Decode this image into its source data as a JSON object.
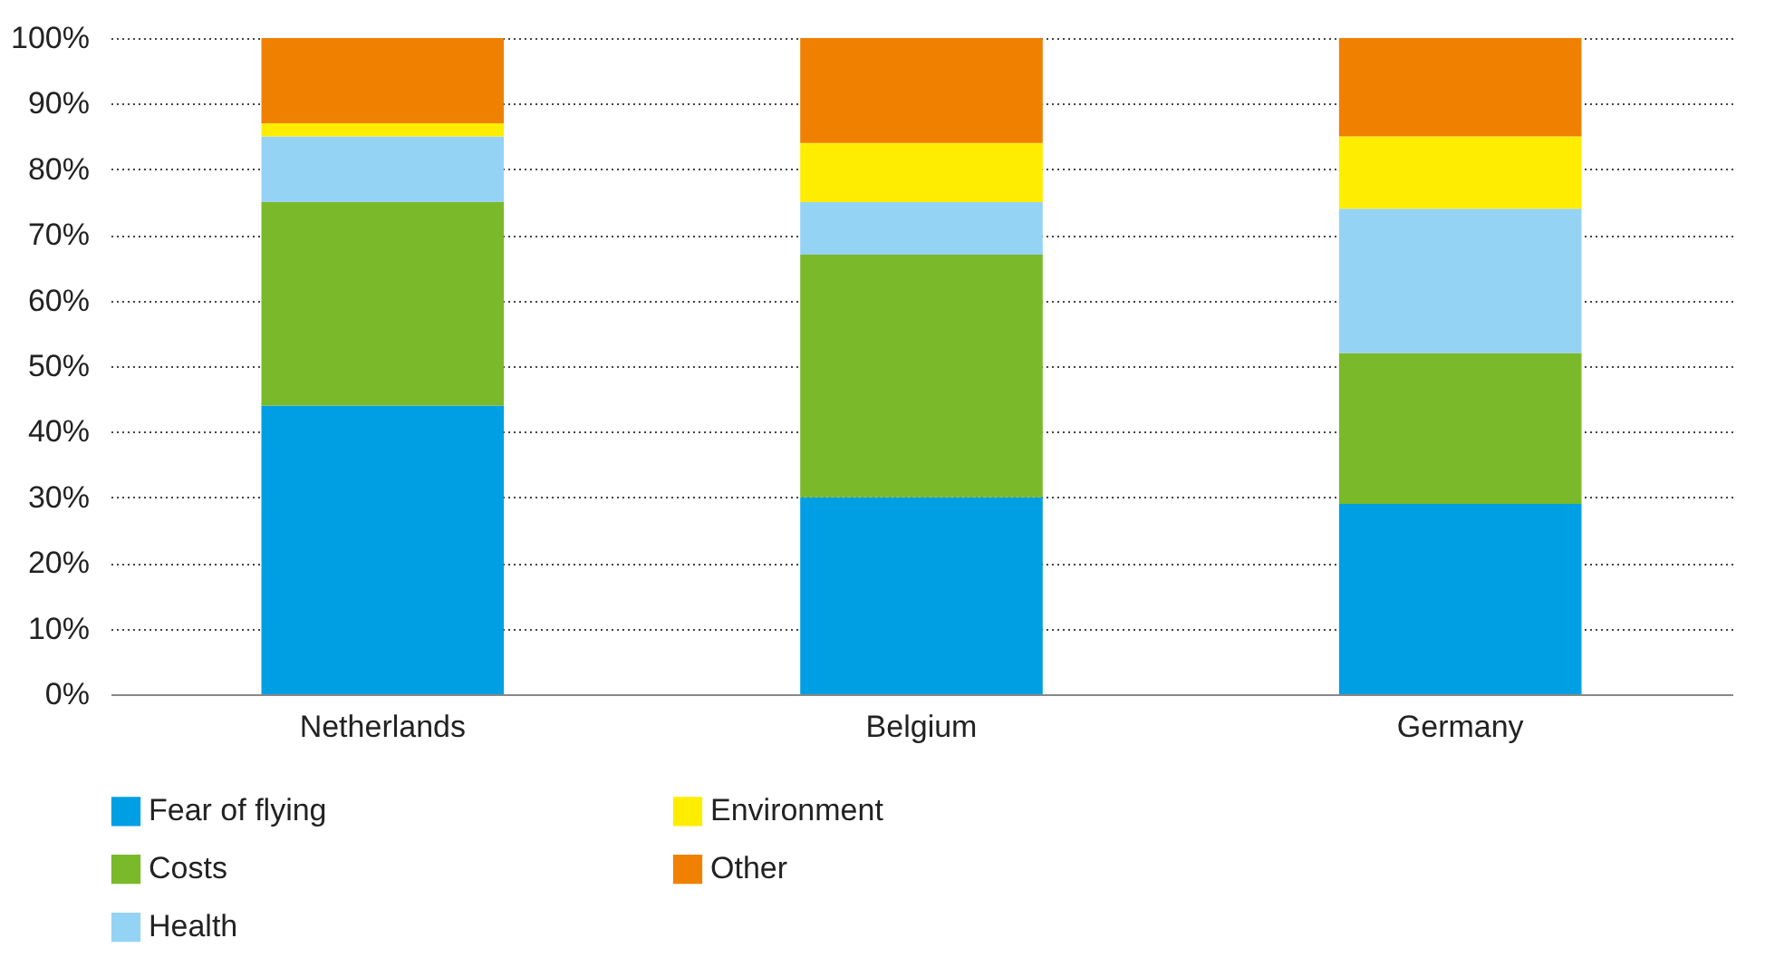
{
  "chart_data": {
    "type": "bar",
    "stacked": true,
    "categories": [
      "Netherlands",
      "Belgium",
      "Germany"
    ],
    "series": [
      {
        "name": "Fear of flying",
        "color": "#009fe3",
        "values": [
          44,
          30,
          29
        ]
      },
      {
        "name": "Costs",
        "color": "#7ab929",
        "values": [
          31,
          37,
          23
        ]
      },
      {
        "name": "Health",
        "color": "#95d3f5",
        "values": [
          10,
          8,
          22
        ]
      },
      {
        "name": "Environment",
        "color": "#ffed00",
        "values": [
          2,
          9,
          11
        ]
      },
      {
        "name": "Other",
        "color": "#f08000",
        "values": [
          13,
          16,
          15
        ]
      }
    ],
    "ylim": [
      0,
      100
    ],
    "yticks": [
      {
        "value": 0,
        "label": "0%"
      },
      {
        "value": 10,
        "label": "10%"
      },
      {
        "value": 20,
        "label": "20%"
      },
      {
        "value": 30,
        "label": "30%"
      },
      {
        "value": 40,
        "label": "40%"
      },
      {
        "value": 50,
        "label": "50%"
      },
      {
        "value": 60,
        "label": "60%"
      },
      {
        "value": 70,
        "label": "70%"
      },
      {
        "value": 80,
        "label": "80%"
      },
      {
        "value": 90,
        "label": "90%"
      },
      {
        "value": 100,
        "label": "100%"
      }
    ],
    "grid": "y",
    "legend": "bottom left"
  }
}
